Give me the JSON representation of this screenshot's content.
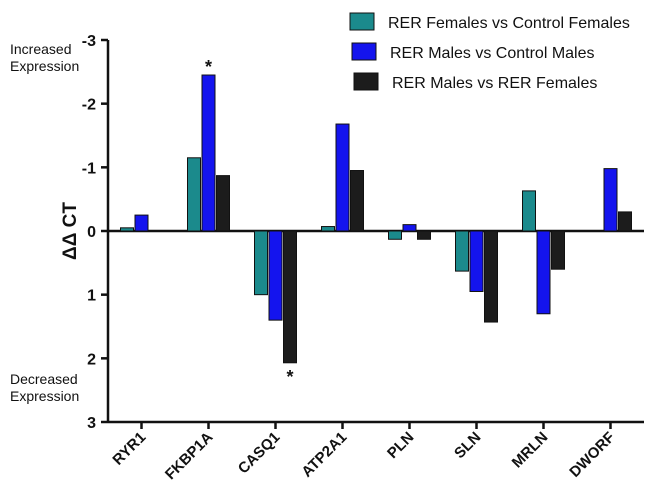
{
  "chart_data": {
    "type": "bar",
    "y_label": "ΔΔ CT",
    "top_note": [
      "Increased",
      "Expression"
    ],
    "bottom_note": [
      "Decreased",
      "Expression"
    ],
    "categories": [
      "RYR1",
      "FKBP1A",
      "CASQ1",
      "ATP2A1",
      "PLN",
      "SLN",
      "MRLN",
      "DWORF"
    ],
    "series": [
      {
        "name": "RER Females vs Control Females",
        "color": "#1b8a8c",
        "values": [
          -0.05,
          -1.15,
          1.0,
          -0.07,
          0.13,
          0.63,
          -0.63,
          0
        ]
      },
      {
        "name": "RER Males vs Control Males",
        "color": "#1414ee",
        "values": [
          -0.25,
          -2.45,
          1.4,
          -1.68,
          -0.1,
          0.95,
          1.3,
          -0.98
        ]
      },
      {
        "name": "RER Males vs RER Females",
        "color": "#1c1c1c",
        "values": [
          0,
          -0.87,
          2.07,
          -0.95,
          0.13,
          1.43,
          0.6,
          -0.3
        ]
      }
    ],
    "annotations": [
      "*",
      "*"
    ],
    "ylim": [
      3,
      -3
    ],
    "yticks": [
      -3,
      -2,
      -1,
      0,
      1,
      2,
      3
    ]
  }
}
